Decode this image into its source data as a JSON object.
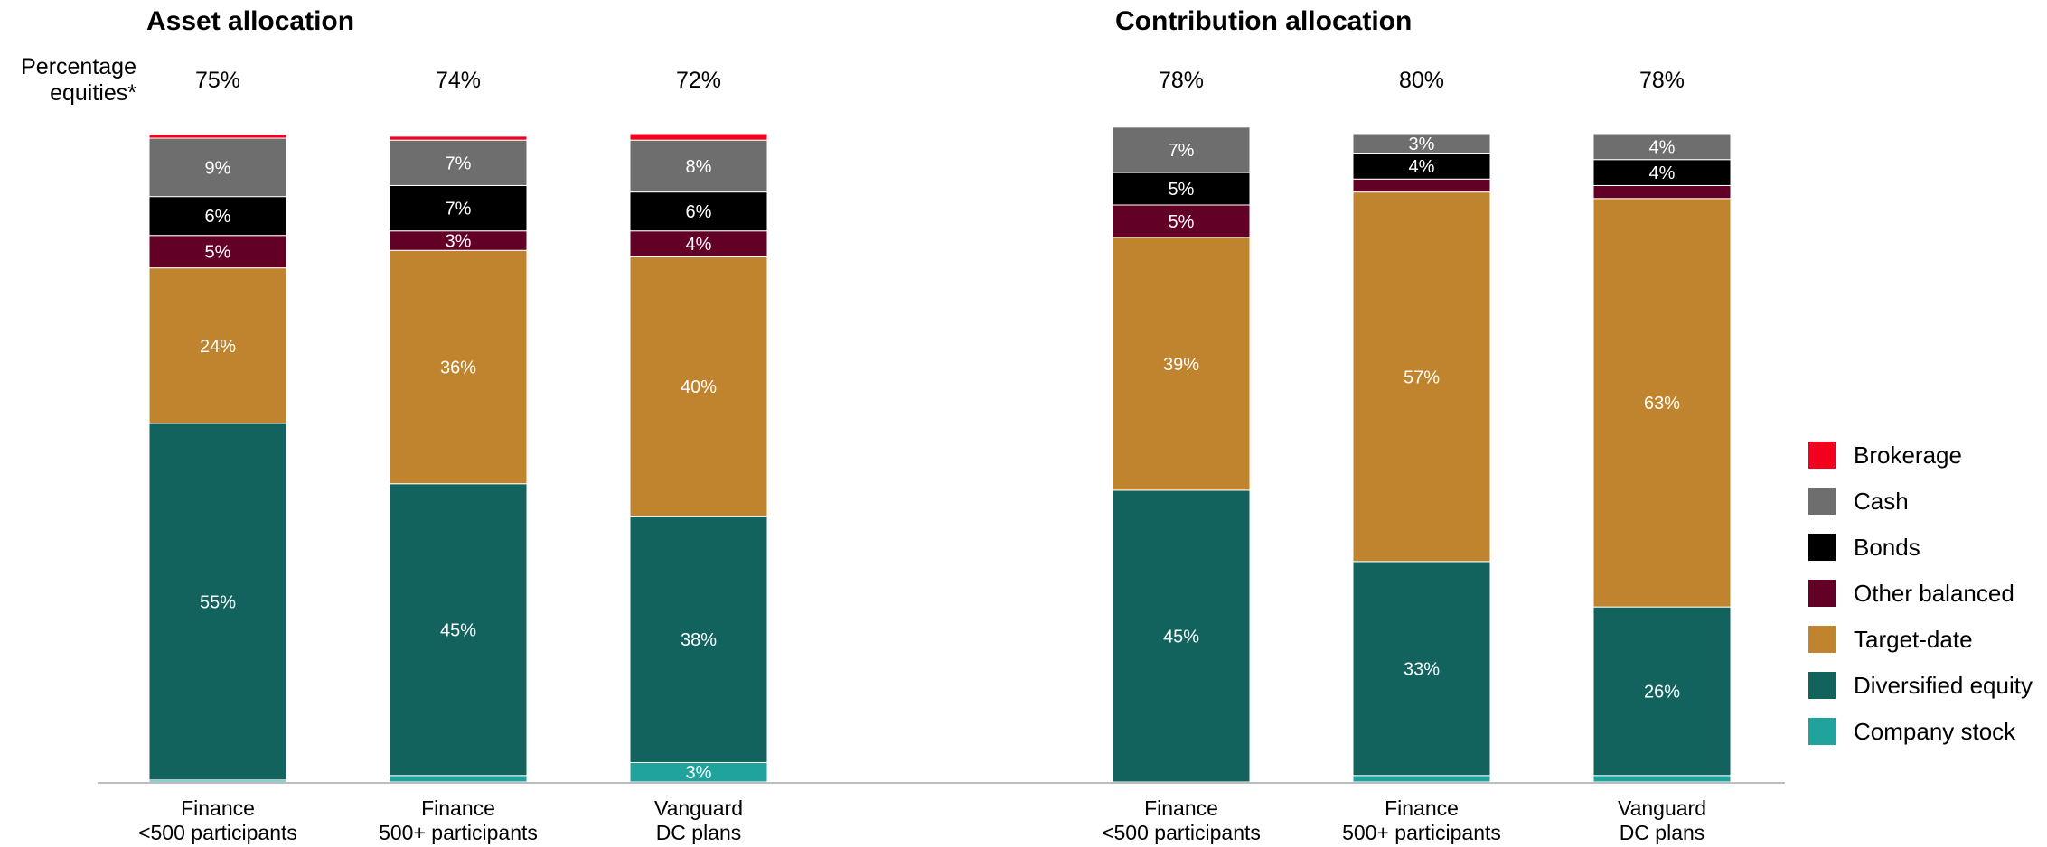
{
  "chart_data": [
    {
      "type": "bar",
      "stacked": true,
      "title": "Asset allocation",
      "row_label": [
        "Percentage",
        "equities*"
      ],
      "categories": [
        [
          "Finance",
          "<500 participants"
        ],
        [
          "Finance",
          "500+ participants"
        ],
        [
          "Vanguard",
          "DC plans"
        ]
      ],
      "percentage_equities": [
        "75%",
        "74%",
        "72%"
      ],
      "series": [
        {
          "name": "Company stock",
          "values": [
            0.3,
            1,
            3
          ],
          "labels": [
            "",
            "",
            "3%"
          ]
        },
        {
          "name": "Diversified equity",
          "values": [
            55,
            45,
            38
          ],
          "labels": [
            "55%",
            "45%",
            "38%"
          ]
        },
        {
          "name": "Target-date",
          "values": [
            24,
            36,
            40
          ],
          "labels": [
            "24%",
            "36%",
            "40%"
          ]
        },
        {
          "name": "Other balanced",
          "values": [
            5,
            3,
            4
          ],
          "labels": [
            "5%",
            "3%",
            "4%"
          ]
        },
        {
          "name": "Bonds",
          "values": [
            6,
            7,
            6
          ],
          "labels": [
            "6%",
            "7%",
            "6%"
          ]
        },
        {
          "name": "Cash",
          "values": [
            9,
            7,
            8
          ],
          "labels": [
            "9%",
            "7%",
            "8%"
          ]
        },
        {
          "name": "Brokerage",
          "values": [
            0.6,
            0.6,
            1
          ],
          "labels": [
            "",
            "",
            ""
          ]
        }
      ]
    },
    {
      "type": "bar",
      "stacked": true,
      "title": "Contribution allocation",
      "categories": [
        [
          "Finance",
          "<500 participants"
        ],
        [
          "Finance",
          "500+ participants"
        ],
        [
          "Vanguard",
          "DC plans"
        ]
      ],
      "percentage_equities": [
        "78%",
        "80%",
        "78%"
      ],
      "series": [
        {
          "name": "Company stock",
          "values": [
            0,
            1,
            1
          ],
          "labels": [
            "",
            "",
            ""
          ]
        },
        {
          "name": "Diversified equity",
          "values": [
            45,
            33,
            26
          ],
          "labels": [
            "45%",
            "33%",
            "26%"
          ]
        },
        {
          "name": "Target-date",
          "values": [
            39,
            57,
            63
          ],
          "labels": [
            "39%",
            "57%",
            "63%"
          ]
        },
        {
          "name": "Other balanced",
          "values": [
            5,
            2,
            2
          ],
          "labels": [
            "5%",
            "",
            ""
          ]
        },
        {
          "name": "Bonds",
          "values": [
            5,
            4,
            4
          ],
          "labels": [
            "5%",
            "4%",
            "4%"
          ]
        },
        {
          "name": "Cash",
          "values": [
            7,
            3,
            4
          ],
          "labels": [
            "7%",
            "3%",
            "4%"
          ]
        },
        {
          "name": "Brokerage",
          "values": [
            0,
            0,
            0
          ],
          "labels": [
            "",
            "",
            ""
          ]
        }
      ]
    }
  ],
  "legend": {
    "placement": "right",
    "items": [
      {
        "name": "Brokerage",
        "color": "#f2001e"
      },
      {
        "name": "Cash",
        "color": "#6e6e6e"
      },
      {
        "name": "Bonds",
        "color": "#000000"
      },
      {
        "name": "Other balanced",
        "color": "#620026"
      },
      {
        "name": "Target-date",
        "color": "#c0842e"
      },
      {
        "name": "Diversified equity",
        "color": "#12625e"
      },
      {
        "name": "Company stock",
        "color": "#1fa39c"
      }
    ]
  }
}
